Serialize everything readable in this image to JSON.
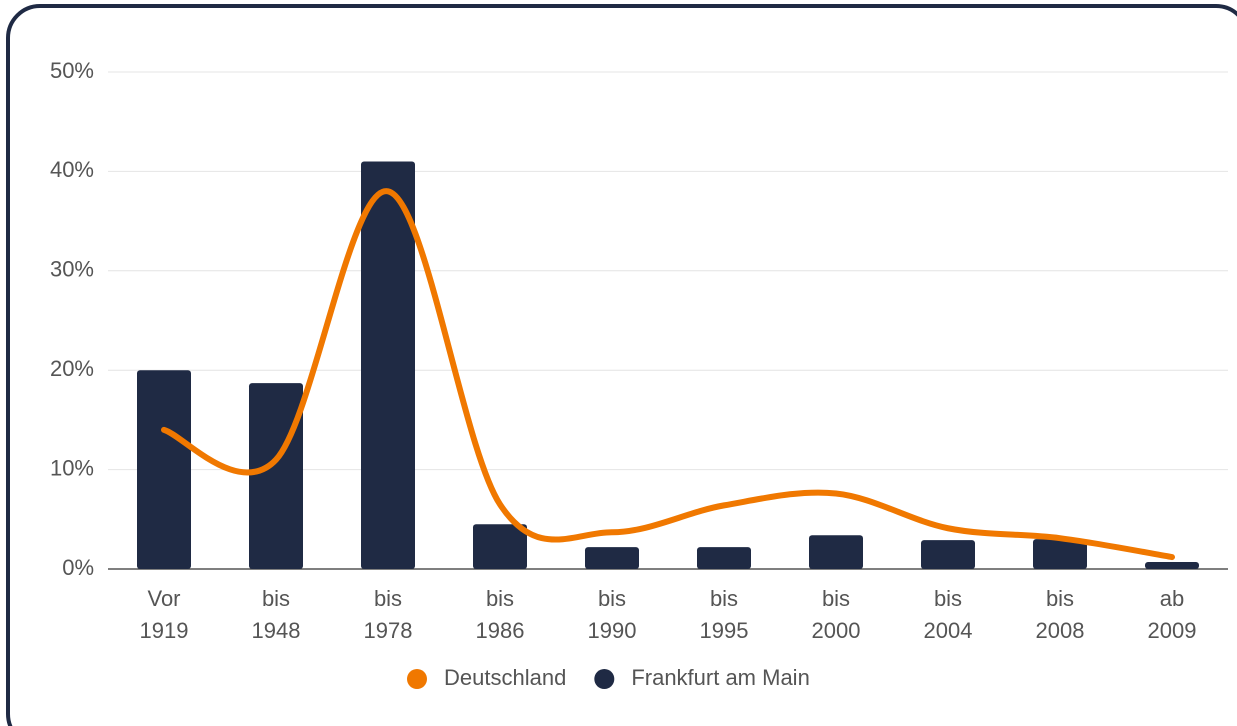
{
  "chart_data": {
    "type": "bar",
    "categories": [
      [
        "Vor",
        "1919"
      ],
      [
        "bis",
        "1948"
      ],
      [
        "bis",
        "1978"
      ],
      [
        "bis",
        "1986"
      ],
      [
        "bis",
        "1990"
      ],
      [
        "bis",
        "1995"
      ],
      [
        "bis",
        "2000"
      ],
      [
        "bis",
        "2004"
      ],
      [
        "bis",
        "2008"
      ],
      [
        "ab",
        "2009"
      ]
    ],
    "series": [
      {
        "name": "Deutschland",
        "type": "line",
        "color": "#f07800",
        "values": [
          14,
          11,
          38,
          6.5,
          3.7,
          6.4,
          7.6,
          4.1,
          3.1,
          1.2
        ]
      },
      {
        "name": "Frankfurt am Main",
        "type": "bar",
        "color": "#1f2a44",
        "values": [
          20,
          18.7,
          41,
          4.5,
          2.2,
          2.2,
          3.4,
          2.9,
          3.0,
          0.7
        ]
      }
    ],
    "ylim": [
      0,
      50
    ],
    "yticks": [
      {
        "value": 0,
        "label": "0%"
      },
      {
        "value": 10,
        "label": "10%"
      },
      {
        "value": 20,
        "label": "20%"
      },
      {
        "value": 30,
        "label": "30%"
      },
      {
        "value": 40,
        "label": "40%"
      },
      {
        "value": 50,
        "label": "50%"
      }
    ],
    "grid": true,
    "legend": "bottom"
  }
}
